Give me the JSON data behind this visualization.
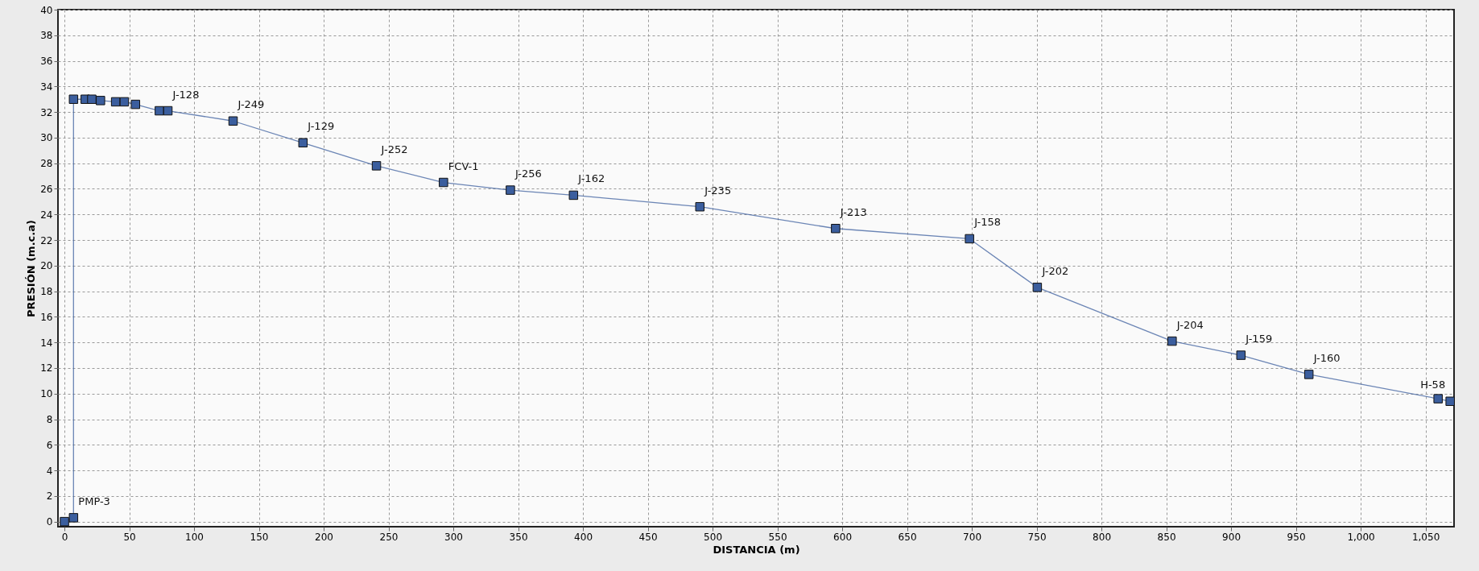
{
  "chart_data": {
    "type": "line",
    "xlabel": "DISTANCIA (m)",
    "ylabel": "PRESIÓN (m.c.a)",
    "series": [
      {
        "color": "#3b5e9e",
        "x": [
          0,
          7,
          7,
          16,
          21.1,
          27.8,
          39.5,
          46.2,
          54.8,
          73.2,
          79.8,
          130.1,
          184,
          240.7,
          292.4,
          344,
          392.7,
          490.2,
          594.9,
          698.2,
          750.5,
          854.5,
          907.6,
          960,
          1059.7,
          1069
        ],
        "values": [
          0,
          0.3,
          33,
          33,
          33,
          32.9,
          32.8,
          32.8,
          32.6,
          32.1,
          32.1,
          31.3,
          29.6,
          27.8,
          26.5,
          25.9,
          25.5,
          24.6,
          22.9,
          22.1,
          18.3,
          14.1,
          13,
          11.5,
          9.6,
          9.4
        ]
      }
    ],
    "marker": "square",
    "line_style": "solid",
    "grid": true,
    "xlim": [
      -5,
      1072
    ],
    "xticks": [
      0,
      50,
      100,
      150,
      200,
      250,
      300,
      350,
      400,
      450,
      500,
      550,
      600,
      650,
      700,
      750,
      800,
      850,
      900,
      950,
      {
        "value": 1000,
        "label": "1,000"
      },
      {
        "value": 1050,
        "label": "1,050"
      }
    ],
    "ylim": [
      -0.4,
      40
    ],
    "yticks": [
      0,
      2,
      4,
      6,
      8,
      10,
      12,
      14,
      16,
      18,
      20,
      22,
      24,
      26,
      28,
      30,
      32,
      34,
      36,
      38,
      40
    ],
    "annotations": [
      {
        "text": "PMP-3",
        "x": 7,
        "y": 0.3
      },
      {
        "text": "J-128",
        "x": 79.8,
        "y": 32.1
      },
      {
        "text": "J-249",
        "x": 130.1,
        "y": 31.3
      },
      {
        "text": "J-129",
        "x": 184,
        "y": 29.6
      },
      {
        "text": "J-252",
        "x": 240.7,
        "y": 27.8
      },
      {
        "text": "FCV-1",
        "x": 292.4,
        "y": 26.5
      },
      {
        "text": "J-256",
        "x": 344,
        "y": 25.9
      },
      {
        "text": "J-162",
        "x": 392.7,
        "y": 25.5
      },
      {
        "text": "J-235",
        "x": 490.2,
        "y": 24.6
      },
      {
        "text": "J-213",
        "x": 594.9,
        "y": 22.9
      },
      {
        "text": "J-158",
        "x": 698.2,
        "y": 22.1
      },
      {
        "text": "J-202",
        "x": 750.5,
        "y": 18.3
      },
      {
        "text": "J-204",
        "x": 854.5,
        "y": 14.1
      },
      {
        "text": "J-159",
        "x": 907.6,
        "y": 13
      },
      {
        "text": "J-160",
        "x": 960,
        "y": 11.5
      },
      {
        "text": "H-58",
        "x": 1069,
        "y": 9.4
      }
    ]
  }
}
